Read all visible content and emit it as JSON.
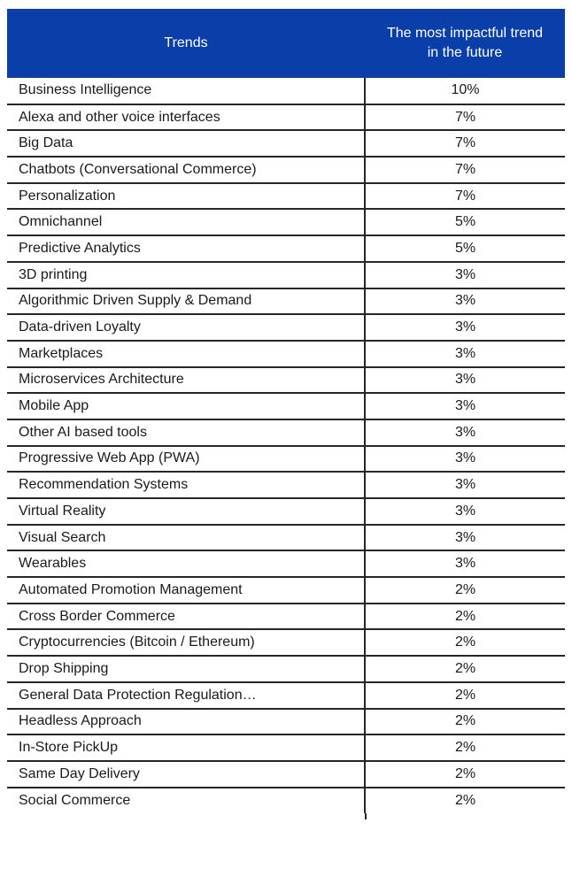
{
  "colors": {
    "header_bg": "#0a3fa9",
    "header_text": "#ffffff",
    "border": "#262626",
    "body_text": "#1a1a1a"
  },
  "table": {
    "columns": [
      {
        "label": "Trends"
      },
      {
        "label": "The most impactful trend in the future"
      }
    ],
    "rows": [
      {
        "trend": "Business Intelligence",
        "value": "10%"
      },
      {
        "trend": "Alexa and other voice interfaces",
        "value": "7%"
      },
      {
        "trend": "Big Data",
        "value": "7%"
      },
      {
        "trend": "Chatbots (Conversational Commerce)",
        "value": "7%"
      },
      {
        "trend": "Personalization",
        "value": "7%"
      },
      {
        "trend": "Omnichannel",
        "value": "5%"
      },
      {
        "trend": "Predictive Analytics",
        "value": "5%"
      },
      {
        "trend": "3D printing",
        "value": "3%"
      },
      {
        "trend": "Algorithmic Driven Supply & Demand",
        "value": "3%"
      },
      {
        "trend": "Data-driven Loyalty",
        "value": "3%"
      },
      {
        "trend": "Marketplaces",
        "value": "3%"
      },
      {
        "trend": "Microservices Architecture",
        "value": "3%"
      },
      {
        "trend": "Mobile App",
        "value": "3%"
      },
      {
        "trend": "Other AI based tools",
        "value": "3%"
      },
      {
        "trend": "Progressive Web App (PWA)",
        "value": "3%"
      },
      {
        "trend": "Recommendation Systems",
        "value": "3%"
      },
      {
        "trend": "Virtual Reality",
        "value": "3%"
      },
      {
        "trend": "Visual Search",
        "value": "3%"
      },
      {
        "trend": "Wearables",
        "value": "3%"
      },
      {
        "trend": "Automated Promotion Management",
        "value": "2%"
      },
      {
        "trend": "Cross Border Commerce",
        "value": "2%"
      },
      {
        "trend": "Cryptocurrencies (Bitcoin / Ethereum)",
        "value": "2%"
      },
      {
        "trend": "Drop Shipping",
        "value": "2%"
      },
      {
        "trend": "General Data Protection Regulation…",
        "value": "2%"
      },
      {
        "trend": "Headless Approach",
        "value": "2%"
      },
      {
        "trend": "In-Store PickUp",
        "value": "2%"
      },
      {
        "trend": "Same Day Delivery",
        "value": "2%"
      },
      {
        "trend": "Social Commerce",
        "value": "2%"
      }
    ]
  },
  "chart_data": {
    "type": "table",
    "title": "",
    "columns": [
      "Trends",
      "The most impactful trend in the future"
    ],
    "categories": [
      "Business Intelligence",
      "Alexa and other voice interfaces",
      "Big Data",
      "Chatbots (Conversational Commerce)",
      "Personalization",
      "Omnichannel",
      "Predictive Analytics",
      "3D printing",
      "Algorithmic Driven Supply & Demand",
      "Data-driven Loyalty",
      "Marketplaces",
      "Microservices Architecture",
      "Mobile App",
      "Other AI based tools",
      "Progressive Web App (PWA)",
      "Recommendation Systems",
      "Virtual Reality",
      "Visual Search",
      "Wearables",
      "Automated Promotion Management",
      "Cross Border Commerce",
      "Cryptocurrencies (Bitcoin / Ethereum)",
      "Drop Shipping",
      "General Data Protection Regulation…",
      "Headless Approach",
      "In-Store PickUp",
      "Same Day Delivery",
      "Social Commerce"
    ],
    "values_percent": [
      10,
      7,
      7,
      7,
      7,
      5,
      5,
      3,
      3,
      3,
      3,
      3,
      3,
      3,
      3,
      3,
      3,
      3,
      3,
      2,
      2,
      2,
      2,
      2,
      2,
      2,
      2,
      2
    ]
  }
}
